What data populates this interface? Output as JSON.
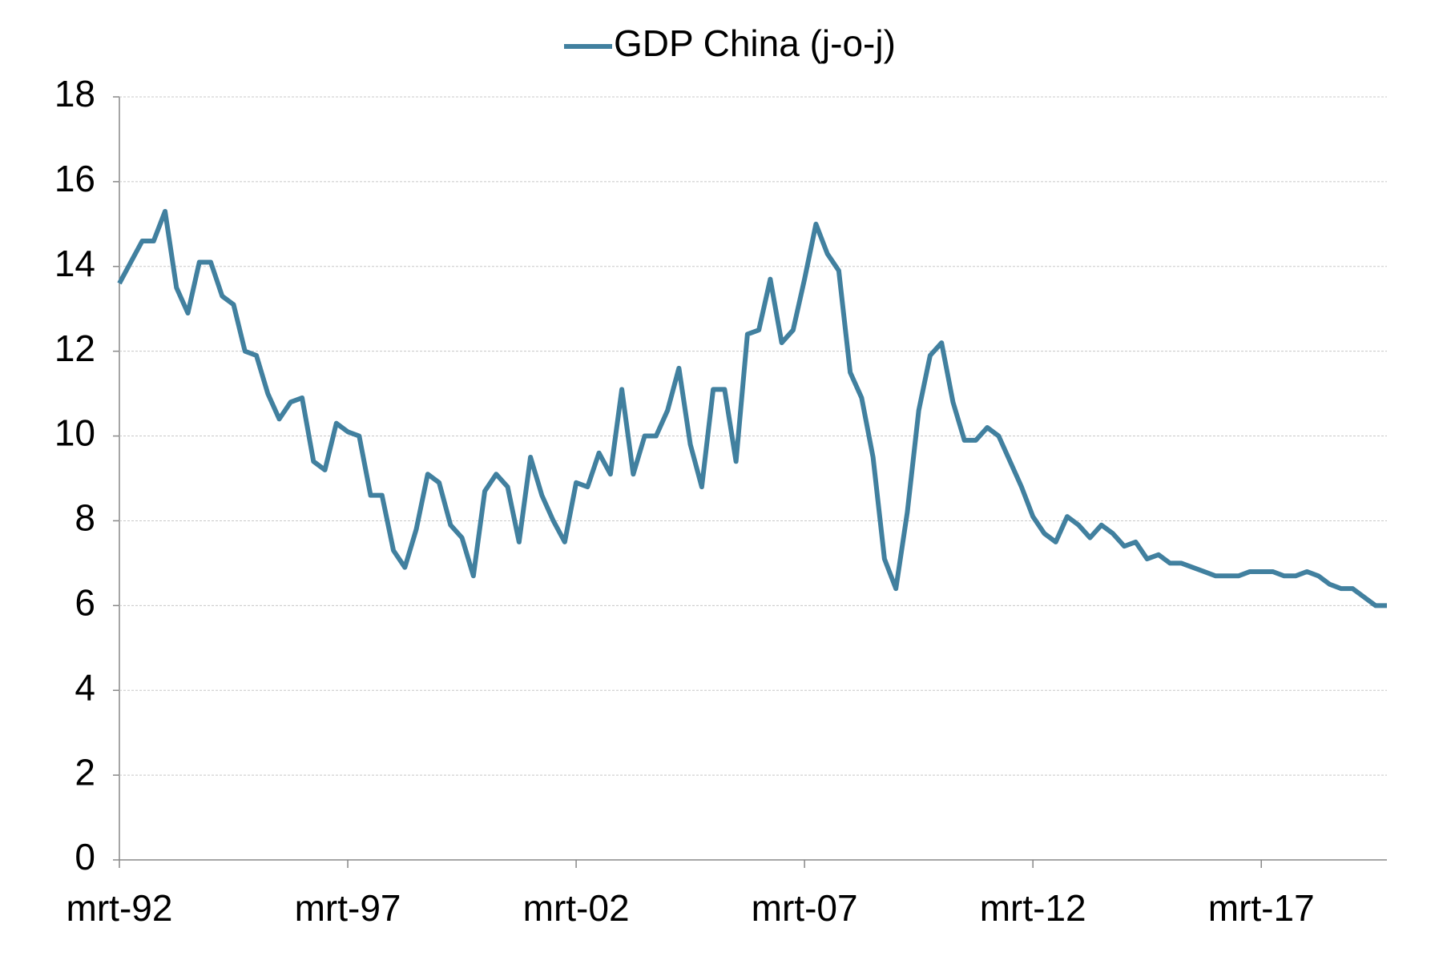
{
  "chart_data": {
    "type": "line",
    "categories": [
      "mrt-92",
      null,
      null,
      null,
      null,
      null,
      null,
      null,
      null,
      null,
      null,
      null,
      null,
      null,
      null,
      null,
      null,
      null,
      null,
      null,
      "mrt-97",
      null,
      null,
      null,
      null,
      null,
      null,
      null,
      null,
      null,
      null,
      null,
      null,
      null,
      null,
      null,
      null,
      null,
      null,
      null,
      "mrt-02",
      null,
      null,
      null,
      null,
      null,
      null,
      null,
      null,
      null,
      null,
      null,
      null,
      null,
      null,
      null,
      null,
      null,
      null,
      null,
      "mrt-07",
      null,
      null,
      null,
      null,
      null,
      null,
      null,
      null,
      null,
      null,
      null,
      null,
      null,
      null,
      null,
      null,
      null,
      null,
      null,
      "mrt-12",
      null,
      null,
      null,
      null,
      null,
      null,
      null,
      null,
      null,
      null,
      null,
      null,
      null,
      null,
      null,
      null,
      null,
      null,
      null,
      "mrt-17",
      null,
      null,
      null,
      null,
      null,
      null,
      null,
      null,
      null,
      null,
      null
    ],
    "series": [
      {
        "name": "GDP China (j-o-j)",
        "color": "#41809f",
        "values": [
          13.6,
          14.1,
          14.6,
          14.6,
          15.3,
          13.5,
          12.9,
          14.1,
          14.1,
          13.3,
          13.1,
          12.0,
          11.9,
          11.0,
          10.4,
          10.8,
          10.9,
          9.4,
          9.2,
          10.3,
          10.1,
          10.0,
          8.6,
          8.6,
          7.3,
          6.9,
          7.8,
          9.1,
          8.9,
          7.9,
          7.6,
          6.7,
          8.7,
          9.1,
          8.8,
          7.5,
          9.5,
          8.6,
          8.0,
          7.5,
          8.9,
          8.8,
          9.6,
          9.1,
          11.1,
          9.1,
          10.0,
          10.0,
          10.6,
          11.6,
          9.8,
          8.8,
          11.1,
          11.1,
          9.4,
          12.4,
          12.5,
          13.7,
          12.2,
          12.5,
          13.7,
          15.0,
          14.3,
          13.9,
          11.5,
          10.9,
          9.5,
          7.1,
          6.4,
          8.2,
          10.6,
          11.9,
          12.2,
          10.8,
          9.9,
          9.9,
          10.2,
          10.0,
          9.4,
          8.8,
          8.1,
          7.7,
          7.5,
          8.1,
          7.9,
          7.6,
          7.9,
          7.7,
          7.4,
          7.5,
          7.1,
          7.2,
          7.0,
          7.0,
          6.9,
          6.8,
          6.7,
          6.7,
          6.7,
          6.8,
          6.8,
          6.8,
          6.7,
          6.7,
          6.8,
          6.7,
          6.5,
          6.4,
          6.4,
          6.2,
          6.0,
          6.0
        ]
      }
    ],
    "ylim": [
      0,
      18
    ],
    "yticks": [
      0,
      2,
      4,
      6,
      8,
      10,
      12,
      14,
      16,
      18
    ],
    "grid": true,
    "legend": "top"
  }
}
